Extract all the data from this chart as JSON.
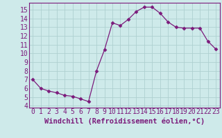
{
  "x": [
    0,
    1,
    2,
    3,
    4,
    5,
    6,
    7,
    8,
    9,
    10,
    11,
    12,
    13,
    14,
    15,
    16,
    17,
    18,
    19,
    20,
    21,
    22,
    23
  ],
  "y": [
    7.0,
    6.0,
    5.7,
    5.5,
    5.2,
    5.1,
    4.8,
    4.5,
    8.0,
    10.4,
    13.5,
    13.2,
    13.9,
    14.8,
    15.3,
    15.3,
    14.6,
    13.6,
    13.0,
    12.9,
    12.9,
    12.9,
    11.4,
    10.5
  ],
  "line_color": "#7b1a7b",
  "marker": "D",
  "marker_size": 2.5,
  "bg_color": "#ceeaea",
  "grid_color": "#aed0d0",
  "xlabel": "Windchill (Refroidissement éolien,°C)",
  "xlabel_fontsize": 7.5,
  "tick_fontsize": 7,
  "ylim": [
    3.8,
    15.8
  ],
  "xlim": [
    -0.5,
    23.5
  ],
  "yticks": [
    4,
    5,
    6,
    7,
    8,
    9,
    10,
    11,
    12,
    13,
    14,
    15
  ],
  "xticks": [
    0,
    1,
    2,
    3,
    4,
    5,
    6,
    7,
    8,
    9,
    10,
    11,
    12,
    13,
    14,
    15,
    16,
    17,
    18,
    19,
    20,
    21,
    22,
    23
  ],
  "spine_color": "#7b1a7b"
}
